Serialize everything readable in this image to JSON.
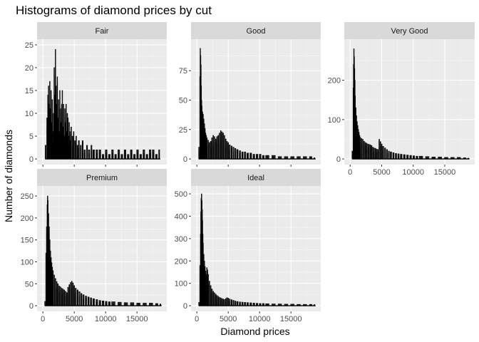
{
  "chart_data": {
    "type": "bar",
    "title": "Histograms of diamond prices by cut",
    "xlabel": "Diamond prices",
    "ylabel": "Number of diamonds",
    "grid": true,
    "xlim": [
      0,
      18823
    ],
    "x_ticks": [
      0,
      5000,
      10000,
      15000
    ],
    "panels": [
      {
        "name": "Fair",
        "ylim": [
          0,
          25
        ],
        "y_ticks": [
          0,
          5,
          10,
          15,
          20,
          25
        ],
        "points": [
          [
            400,
            3
          ],
          [
            650,
            9
          ],
          [
            800,
            14
          ],
          [
            900,
            16
          ],
          [
            1000,
            12
          ],
          [
            1100,
            17
          ],
          [
            1200,
            11
          ],
          [
            1300,
            15
          ],
          [
            1400,
            8
          ],
          [
            1500,
            13
          ],
          [
            1600,
            6
          ],
          [
            1700,
            10
          ],
          [
            1800,
            20
          ],
          [
            1900,
            14
          ],
          [
            2000,
            24
          ],
          [
            2100,
            16
          ],
          [
            2200,
            12
          ],
          [
            2300,
            18
          ],
          [
            2400,
            9
          ],
          [
            2500,
            13
          ],
          [
            2600,
            6
          ],
          [
            2700,
            15
          ],
          [
            2800,
            11
          ],
          [
            2900,
            8
          ],
          [
            3000,
            12
          ],
          [
            3100,
            15
          ],
          [
            3200,
            7
          ],
          [
            3300,
            12
          ],
          [
            3400,
            5
          ],
          [
            3500,
            11
          ],
          [
            3600,
            8
          ],
          [
            3700,
            12
          ],
          [
            3800,
            6
          ],
          [
            3900,
            10
          ],
          [
            4000,
            9
          ],
          [
            4100,
            5
          ],
          [
            4200,
            8
          ],
          [
            4300,
            6
          ],
          [
            4400,
            4
          ],
          [
            4500,
            7
          ],
          [
            4700,
            5
          ],
          [
            4900,
            6
          ],
          [
            5100,
            4
          ],
          [
            5300,
            5
          ],
          [
            5500,
            3
          ],
          [
            5700,
            4
          ],
          [
            6000,
            3
          ],
          [
            6300,
            4
          ],
          [
            6600,
            2
          ],
          [
            7000,
            3
          ],
          [
            7300,
            2
          ],
          [
            7700,
            3
          ],
          [
            8000,
            2
          ],
          [
            8500,
            2
          ],
          [
            9000,
            2
          ],
          [
            9500,
            1
          ],
          [
            10000,
            2
          ],
          [
            10500,
            1
          ],
          [
            11000,
            2
          ],
          [
            11500,
            1
          ],
          [
            12000,
            2
          ],
          [
            12500,
            1
          ],
          [
            13000,
            2
          ],
          [
            13500,
            1
          ],
          [
            14000,
            2
          ],
          [
            14500,
            1
          ],
          [
            15000,
            2
          ],
          [
            15500,
            1
          ],
          [
            16000,
            2
          ],
          [
            16500,
            1
          ],
          [
            17000,
            2
          ],
          [
            17500,
            2
          ],
          [
            18000,
            1
          ],
          [
            18500,
            2
          ]
        ]
      },
      {
        "name": "Good",
        "ylim": [
          0,
          97
        ],
        "y_ticks": [
          0,
          25,
          50,
          75
        ],
        "points": [
          [
            330,
            10
          ],
          [
            500,
            70
          ],
          [
            550,
            94
          ],
          [
            600,
            88
          ],
          [
            650,
            80
          ],
          [
            700,
            62
          ],
          [
            750,
            50
          ],
          [
            800,
            45
          ],
          [
            900,
            40
          ],
          [
            1000,
            38
          ],
          [
            1100,
            34
          ],
          [
            1200,
            30
          ],
          [
            1300,
            26
          ],
          [
            1400,
            22
          ],
          [
            1500,
            20
          ],
          [
            1600,
            18
          ],
          [
            1800,
            16
          ],
          [
            2000,
            14
          ],
          [
            2200,
            15
          ],
          [
            2400,
            18
          ],
          [
            2600,
            20
          ],
          [
            2800,
            19
          ],
          [
            3000,
            17
          ],
          [
            3200,
            19
          ],
          [
            3400,
            20
          ],
          [
            3600,
            22
          ],
          [
            3800,
            24
          ],
          [
            4000,
            23
          ],
          [
            4200,
            22
          ],
          [
            4400,
            20
          ],
          [
            4600,
            17
          ],
          [
            4800,
            15
          ],
          [
            5000,
            14
          ],
          [
            5200,
            12
          ],
          [
            5500,
            11
          ],
          [
            5800,
            10
          ],
          [
            6100,
            9
          ],
          [
            6400,
            8
          ],
          [
            6800,
            7
          ],
          [
            7200,
            6
          ],
          [
            7600,
            6
          ],
          [
            8000,
            5
          ],
          [
            8500,
            5
          ],
          [
            9000,
            4
          ],
          [
            9500,
            4
          ],
          [
            10000,
            4
          ],
          [
            10500,
            3
          ],
          [
            11000,
            3
          ],
          [
            12000,
            3
          ],
          [
            13000,
            2
          ],
          [
            14000,
            2
          ],
          [
            15000,
            2
          ],
          [
            16000,
            2
          ],
          [
            17000,
            2
          ],
          [
            18000,
            2
          ],
          [
            18700,
            1
          ]
        ]
      },
      {
        "name": "Very Good",
        "ylim": [
          0,
          290
        ],
        "y_ticks": [
          0,
          100,
          200
        ],
        "points": [
          [
            340,
            20
          ],
          [
            500,
            180
          ],
          [
            550,
            240
          ],
          [
            600,
            280
          ],
          [
            650,
            260
          ],
          [
            700,
            230
          ],
          [
            750,
            200
          ],
          [
            800,
            160
          ],
          [
            900,
            130
          ],
          [
            1000,
            110
          ],
          [
            1100,
            95
          ],
          [
            1200,
            85
          ],
          [
            1300,
            75
          ],
          [
            1400,
            68
          ],
          [
            1500,
            60
          ],
          [
            1600,
            55
          ],
          [
            1800,
            52
          ],
          [
            2000,
            50
          ],
          [
            2200,
            45
          ],
          [
            2400,
            42
          ],
          [
            2600,
            40
          ],
          [
            2800,
            38
          ],
          [
            3000,
            37
          ],
          [
            3200,
            36
          ],
          [
            3400,
            34
          ],
          [
            3600,
            30
          ],
          [
            3800,
            28
          ],
          [
            4000,
            27
          ],
          [
            4200,
            25
          ],
          [
            4400,
            24
          ],
          [
            4600,
            50
          ],
          [
            4800,
            44
          ],
          [
            5000,
            38
          ],
          [
            5200,
            32
          ],
          [
            5500,
            28
          ],
          [
            5800,
            24
          ],
          [
            6100,
            20
          ],
          [
            6400,
            18
          ],
          [
            6800,
            16
          ],
          [
            7200,
            14
          ],
          [
            7600,
            13
          ],
          [
            8000,
            12
          ],
          [
            8500,
            11
          ],
          [
            9000,
            10
          ],
          [
            9500,
            9
          ],
          [
            10000,
            8
          ],
          [
            10500,
            7
          ],
          [
            11000,
            7
          ],
          [
            12000,
            6
          ],
          [
            13000,
            5
          ],
          [
            14000,
            5
          ],
          [
            15000,
            4
          ],
          [
            16000,
            4
          ],
          [
            17000,
            4
          ],
          [
            18000,
            3
          ],
          [
            18700,
            2
          ]
        ]
      },
      {
        "name": "Premium",
        "ylim": [
          0,
          260
        ],
        "y_ticks": [
          0,
          50,
          100,
          150,
          200,
          250
        ],
        "points": [
          [
            330,
            10
          ],
          [
            500,
            120
          ],
          [
            600,
            180
          ],
          [
            700,
            230
          ],
          [
            750,
            250
          ],
          [
            800,
            240
          ],
          [
            900,
            210
          ],
          [
            1000,
            180
          ],
          [
            1100,
            150
          ],
          [
            1200,
            125
          ],
          [
            1300,
            110
          ],
          [
            1400,
            98
          ],
          [
            1500,
            88
          ],
          [
            1600,
            80
          ],
          [
            1800,
            70
          ],
          [
            2000,
            62
          ],
          [
            2200,
            55
          ],
          [
            2400,
            50
          ],
          [
            2600,
            45
          ],
          [
            2800,
            43
          ],
          [
            3000,
            40
          ],
          [
            3200,
            38
          ],
          [
            3400,
            36
          ],
          [
            3600,
            33
          ],
          [
            3800,
            30
          ],
          [
            4000,
            42
          ],
          [
            4200,
            48
          ],
          [
            4400,
            53
          ],
          [
            4600,
            56
          ],
          [
            4800,
            52
          ],
          [
            5000,
            46
          ],
          [
            5200,
            40
          ],
          [
            5500,
            36
          ],
          [
            5800,
            32
          ],
          [
            6100,
            28
          ],
          [
            6400,
            25
          ],
          [
            6800,
            22
          ],
          [
            7200,
            20
          ],
          [
            7600,
            18
          ],
          [
            8000,
            16
          ],
          [
            8500,
            14
          ],
          [
            9000,
            12
          ],
          [
            9500,
            11
          ],
          [
            10000,
            10
          ],
          [
            10500,
            9
          ],
          [
            11000,
            9
          ],
          [
            12000,
            8
          ],
          [
            13000,
            7
          ],
          [
            14000,
            7
          ],
          [
            15000,
            6
          ],
          [
            16000,
            6
          ],
          [
            17000,
            6
          ],
          [
            18000,
            5
          ],
          [
            18700,
            4
          ]
        ]
      },
      {
        "name": "Ideal",
        "ylim": [
          0,
          510
        ],
        "y_ticks": [
          0,
          100,
          200,
          300,
          400,
          500
        ],
        "points": [
          [
            330,
            15
          ],
          [
            500,
            180
          ],
          [
            600,
            320
          ],
          [
            650,
            420
          ],
          [
            700,
            480
          ],
          [
            750,
            500
          ],
          [
            800,
            470
          ],
          [
            850,
            430
          ],
          [
            900,
            380
          ],
          [
            950,
            320
          ],
          [
            1000,
            280
          ],
          [
            1100,
            230
          ],
          [
            1200,
            200
          ],
          [
            1300,
            175
          ],
          [
            1400,
            155
          ],
          [
            1500,
            140
          ],
          [
            1600,
            170
          ],
          [
            1700,
            160
          ],
          [
            1800,
            140
          ],
          [
            2000,
            110
          ],
          [
            2200,
            90
          ],
          [
            2400,
            75
          ],
          [
            2600,
            65
          ],
          [
            2800,
            58
          ],
          [
            3000,
            52
          ],
          [
            3200,
            46
          ],
          [
            3400,
            42
          ],
          [
            3600,
            38
          ],
          [
            3800,
            35
          ],
          [
            4000,
            32
          ],
          [
            4200,
            30
          ],
          [
            4400,
            28
          ],
          [
            4600,
            32
          ],
          [
            4800,
            36
          ],
          [
            5000,
            34
          ],
          [
            5200,
            30
          ],
          [
            5500,
            27
          ],
          [
            5800,
            24
          ],
          [
            6100,
            21
          ],
          [
            6400,
            19
          ],
          [
            6800,
            17
          ],
          [
            7200,
            16
          ],
          [
            7600,
            15
          ],
          [
            8000,
            14
          ],
          [
            8500,
            13
          ],
          [
            9000,
            12
          ],
          [
            9500,
            11
          ],
          [
            10000,
            10
          ],
          [
            10500,
            10
          ],
          [
            11000,
            9
          ],
          [
            12000,
            8
          ],
          [
            13000,
            8
          ],
          [
            14000,
            7
          ],
          [
            15000,
            7
          ],
          [
            16000,
            6
          ],
          [
            17000,
            6
          ],
          [
            18000,
            6
          ],
          [
            18700,
            5
          ]
        ]
      }
    ]
  }
}
